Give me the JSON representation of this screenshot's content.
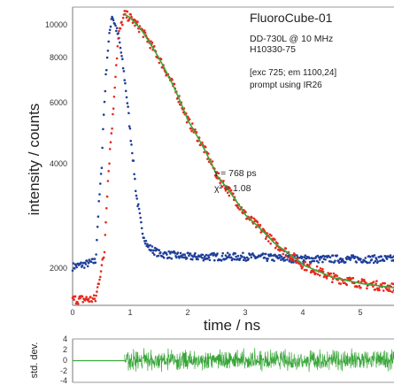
{
  "chart_data": [
    {
      "type": "scatter",
      "xlabel": "time / ns",
      "ylabel": "intensity / counts",
      "xlim": [
        0,
        5.6
      ],
      "ylim": [
        1500,
        10500
      ],
      "y_scale": "log",
      "x_ticks": [
        "0",
        "1",
        "2",
        "3",
        "4",
        "5"
      ],
      "y_ticks": [
        "2000",
        "4000",
        "6000",
        "8000",
        "10000"
      ],
      "grid": false,
      "annotations": {
        "title": "FluoroCube-01",
        "line2": "DD-730L @ 10 MHz",
        "line3": "H10330-75",
        "line4": "[exc 725; em 1100,24]",
        "line5": "prompt using IR26",
        "tau": "τ = 768 ps",
        "chi": "χ² = 1.08"
      },
      "series": [
        {
          "color": "#1f3f9a",
          "marker": "dot",
          "points": [
            [
              0.0,
              1930
            ],
            [
              0.2,
              1960
            ],
            [
              0.4,
              2000
            ],
            [
              0.5,
              3600
            ],
            [
              0.6,
              7600
            ],
            [
              0.68,
              10000
            ],
            [
              0.8,
              8600
            ],
            [
              0.9,
              6600
            ],
            [
              1.0,
              4600
            ],
            [
              1.1,
              3100
            ],
            [
              1.2,
              2450
            ],
            [
              1.3,
              2200
            ],
            [
              1.5,
              2100
            ],
            [
              2.0,
              2060
            ],
            [
              3.0,
              2060
            ],
            [
              4.0,
              2030
            ],
            [
              5.0,
              2030
            ],
            [
              5.6,
              2030
            ]
          ]
        },
        {
          "color": "#e8291c",
          "marker": "dot",
          "points": [
            [
              0.0,
              1560
            ],
            [
              0.4,
              1560
            ],
            [
              0.55,
              2100
            ],
            [
              0.7,
              5200
            ],
            [
              0.8,
              8800
            ],
            [
              0.9,
              10000
            ],
            [
              1.0,
              9800
            ],
            [
              1.2,
              9000
            ],
            [
              1.5,
              7500
            ],
            [
              2.0,
              5000
            ],
            [
              2.5,
              3500
            ],
            [
              3.0,
              2700
            ],
            [
              3.5,
              2250
            ],
            [
              4.0,
              1950
            ],
            [
              4.5,
              1800
            ],
            [
              5.0,
              1730
            ],
            [
              5.6,
              1680
            ]
          ]
        },
        {
          "color": "#3aa63a",
          "marker": "line",
          "points": [
            [
              0.9,
              10000
            ],
            [
              1.0,
              9800
            ],
            [
              1.2,
              9000
            ],
            [
              1.5,
              7500
            ],
            [
              2.0,
              5000
            ],
            [
              2.5,
              3500
            ],
            [
              3.0,
              2700
            ],
            [
              3.5,
              2250
            ],
            [
              4.0,
              1950
            ],
            [
              4.5,
              1800
            ],
            [
              5.0,
              1730
            ],
            [
              5.6,
              1680
            ]
          ]
        }
      ]
    },
    {
      "type": "line",
      "ylabel": "std. dev.",
      "xlim": [
        0,
        5.6
      ],
      "ylim": [
        -4,
        4
      ],
      "y_ticks": [
        "4",
        "2",
        "0",
        "-2",
        "-4"
      ],
      "series": [
        {
          "color": "#3aa63a",
          "x_start": 0.9,
          "amplitude": 1.2,
          "values": [
            0.3,
            -0.8,
            1.4,
            -1.1,
            0.6,
            -0.4,
            2.2,
            -1.6,
            0.9,
            -0.2,
            1.1,
            -1.3,
            0.5,
            -0.9,
            1.7,
            -0.6,
            0.2,
            -1.8,
            1.0,
            -0.3,
            0.8,
            -1.2,
            1.5,
            -0.7,
            0.4,
            -1.0,
            1.9,
            -0.5,
            0.7,
            -1.4,
            0.1,
            -0.8,
            1.3,
            -1.9,
            0.6,
            -0.2,
            1.6,
            -1.1,
            0.9,
            -0.6,
            1.2,
            -1.5,
            0.3,
            -0.9,
            2.0,
            -0.4,
            0.8,
            -1.3,
            1.1,
            -0.7
          ]
        }
      ]
    }
  ]
}
